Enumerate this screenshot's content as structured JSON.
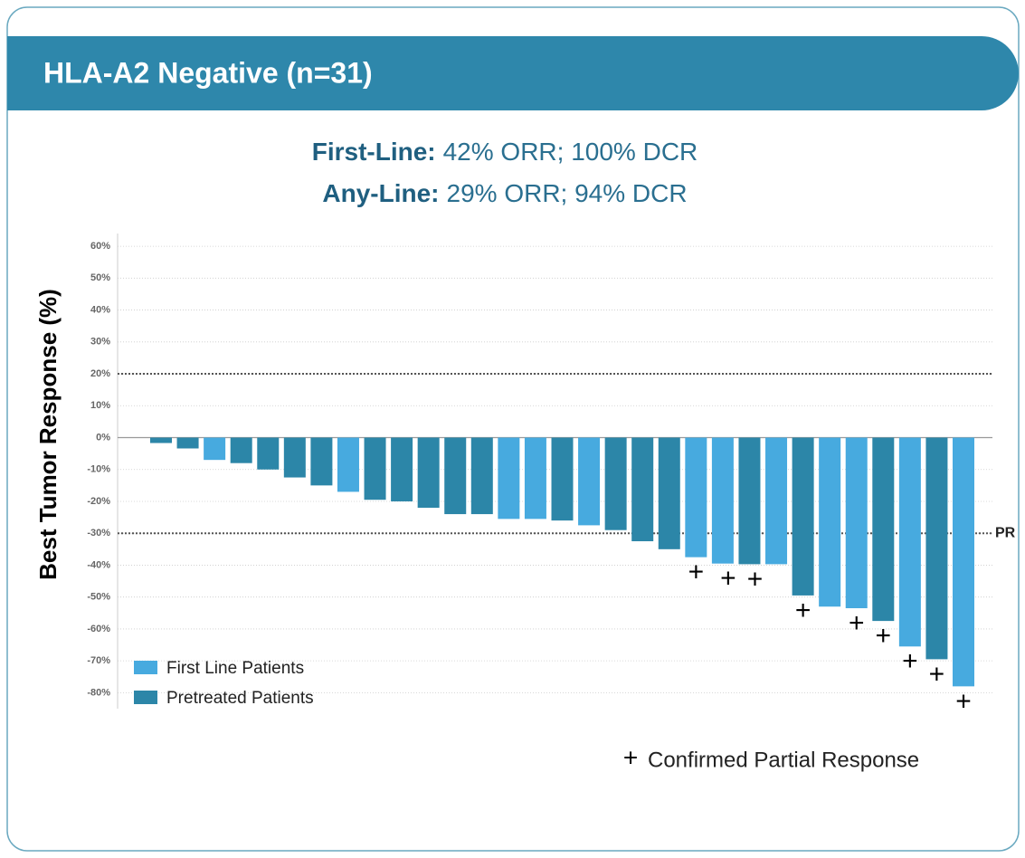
{
  "header": {
    "title": "HLA-A2 Negative (n=31)"
  },
  "chart_data": {
    "type": "bar",
    "annotations": [
      {
        "label": "First-Line:",
        "text": "42% ORR; 100% DCR"
      },
      {
        "label": "Any-Line:",
        "text": "29% ORR; 94% DCR"
      }
    ],
    "ylabel": "Best Tumor Response (%)",
    "ylim": [
      -85,
      64
    ],
    "yticks": [
      {
        "value": 60,
        "label": "60%"
      },
      {
        "value": 50,
        "label": "50%"
      },
      {
        "value": 40,
        "label": "40%"
      },
      {
        "value": 30,
        "label": "30%"
      },
      {
        "value": 20,
        "label": "20%"
      },
      {
        "value": 10,
        "label": "10%"
      },
      {
        "value": 0,
        "label": "0%"
      },
      {
        "value": -10,
        "label": "-10%"
      },
      {
        "value": -20,
        "label": "-20%"
      },
      {
        "value": -30,
        "label": "-30%"
      },
      {
        "value": -40,
        "label": "-40%"
      },
      {
        "value": -50,
        "label": "-50%"
      },
      {
        "value": -60,
        "label": "-60%"
      },
      {
        "value": -70,
        "label": "-70%"
      },
      {
        "value": -80,
        "label": "-80%"
      }
    ],
    "grid": true,
    "reference_lines": [
      {
        "value": 20
      },
      {
        "value": -30,
        "label": "PR"
      }
    ],
    "series": [
      {
        "name": "First Line Patients",
        "color": "#47aadf",
        "values": [
          null,
          null,
          -7,
          null,
          null,
          null,
          null,
          -17,
          null,
          null,
          null,
          null,
          null,
          -25.5,
          -25.5,
          null,
          -27.5,
          null,
          null,
          null,
          -37.5,
          -39.5,
          null,
          -39.7,
          null,
          -53,
          -53.5,
          null,
          -65.5,
          null,
          -78
        ]
      },
      {
        "name": "Pretreated Patients",
        "color": "#2c86a8",
        "values": [
          -1.7,
          -3.4,
          null,
          -8,
          -10,
          -12.5,
          -15,
          null,
          -19.5,
          -20,
          -22,
          -24,
          -24,
          null,
          null,
          -26,
          null,
          -29,
          -32.5,
          -35,
          null,
          null,
          -39.7,
          null,
          -49.5,
          null,
          null,
          -57.5,
          null,
          -69.5,
          null
        ]
      }
    ],
    "confirmed": [
      false,
      false,
      false,
      false,
      false,
      false,
      false,
      false,
      false,
      false,
      false,
      false,
      false,
      false,
      false,
      false,
      false,
      false,
      false,
      false,
      true,
      true,
      true,
      false,
      true,
      false,
      true,
      true,
      true,
      true,
      true
    ],
    "confirmed_marker": "+",
    "confirmed_label": "Confirmed Partial Response",
    "legend": "lower left"
  }
}
